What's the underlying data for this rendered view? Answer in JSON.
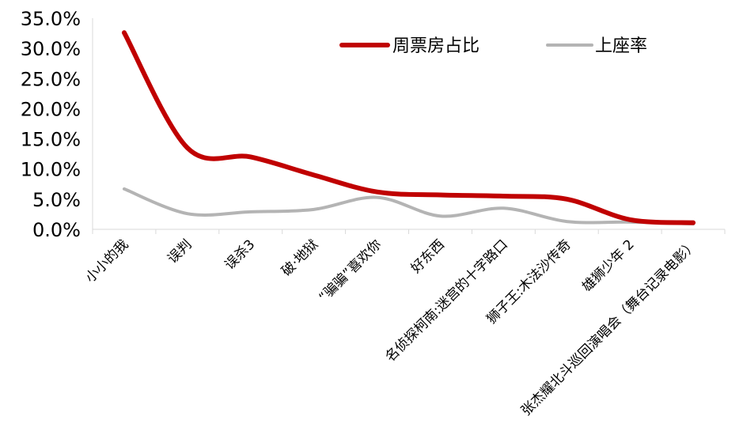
{
  "chart_data": {
    "type": "line",
    "categories": [
      "小小的我",
      "误判",
      "误杀3",
      "破·地狱",
      "“骗骗”喜欢你",
      "好东西",
      "名侦探柯南:迷宫的十字路口",
      "狮子王:木法沙传奇",
      "雄狮少年 2",
      "张杰耀北斗巡回演唱会（舞台记录电影）"
    ],
    "series": [
      {
        "name": "周票房占比",
        "color": "#c00000",
        "values": [
          32.6,
          13.5,
          12.0,
          9.0,
          6.2,
          5.7,
          5.5,
          5.0,
          1.6,
          1.1
        ]
      },
      {
        "name": "上座率",
        "color": "#b4b4b4",
        "values": [
          6.7,
          2.6,
          2.9,
          3.3,
          5.3,
          2.2,
          3.5,
          1.3,
          1.2,
          0.9
        ]
      }
    ],
    "y_ticks": [
      "0.0%",
      "5.0%",
      "10.0%",
      "15.0%",
      "20.0%",
      "25.0%",
      "30.0%",
      "35.0%"
    ],
    "ylim": [
      0,
      35
    ],
    "y_format": "percent",
    "legend_position": "top-right",
    "grid": false
  }
}
